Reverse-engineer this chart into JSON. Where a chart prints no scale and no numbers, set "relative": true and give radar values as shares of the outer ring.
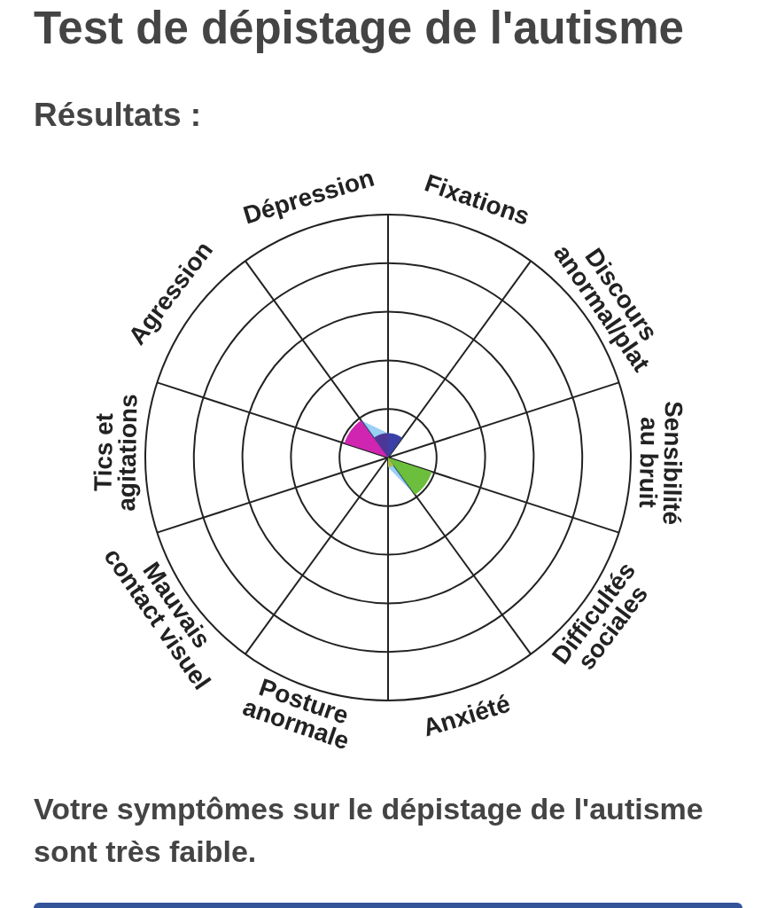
{
  "chart_data": {
    "type": "radar",
    "title": "Test de dépistage de l'autisme",
    "subtitle": "Résultats :",
    "categories": [
      "Dépression",
      "Fixations",
      "Discours anormal/plat",
      "Sensibilité au bruit",
      "Difficultés sociales",
      "Anxiété",
      "Posture anormale",
      "Mauvais contact visuel",
      "Tics et agitations",
      "Agression"
    ],
    "values": [
      0.1,
      0.1,
      0,
      0,
      0.19,
      0.04,
      0,
      0,
      0,
      0.19
    ],
    "colors": [
      "#4d3796",
      "#3b3fa6",
      null,
      null,
      "#6cbf3c",
      "#a9bb48",
      null,
      null,
      null,
      "#d025b0"
    ],
    "relative": true,
    "grid": true,
    "legend": false,
    "annotations": [
      "Votre symptômes sur le dépistage de l'autisme sont très faible."
    ]
  }
}
